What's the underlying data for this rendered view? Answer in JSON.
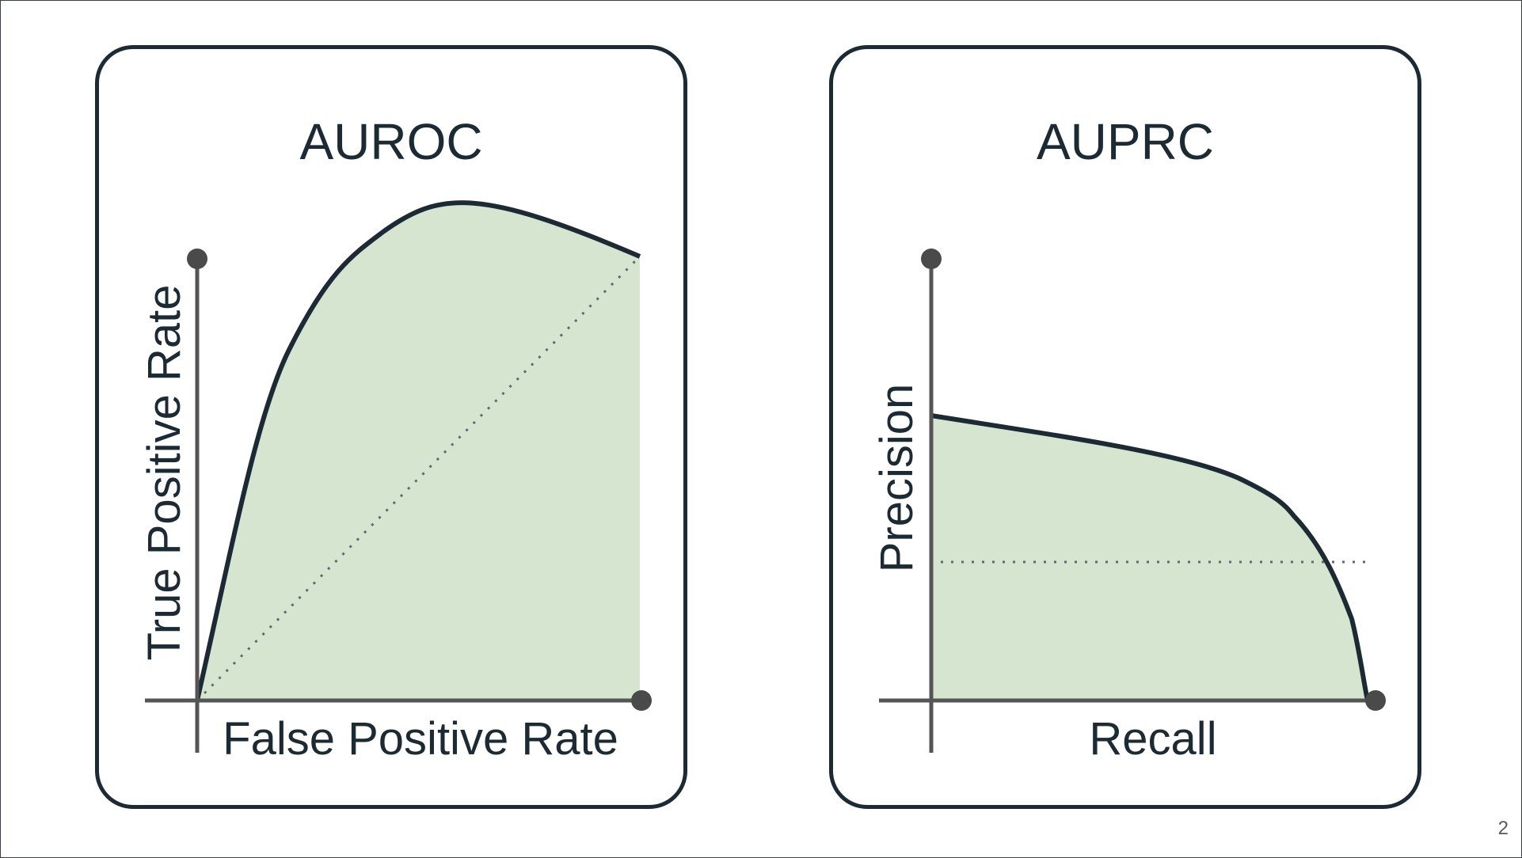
{
  "slide": {
    "page_number": "2"
  },
  "panels": [
    {
      "title": "AUROC",
      "xlabel": "False Positive Rate",
      "ylabel": "True Positive Rate",
      "reference_line": "diagonal",
      "curve": "concave rising from (0,0) to (1,1)"
    },
    {
      "title": "AUPRC",
      "xlabel": "Recall",
      "ylabel": "Precision",
      "reference_line": "horizontal baseline",
      "curve": "decreasing from high precision at recall 0 to 0 at recall 1"
    }
  ],
  "colors": {
    "curve": "#1c2a33",
    "fill": "#d6e5d0",
    "axis": "#555555",
    "reference": "#5d6a72",
    "border": "#1c2a33"
  }
}
